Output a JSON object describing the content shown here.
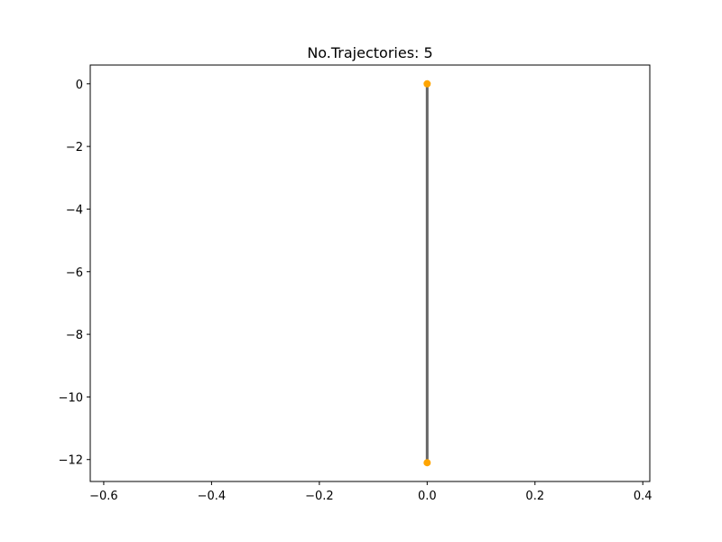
{
  "chart_data": {
    "type": "line",
    "title": "No.Trajectories: 5",
    "xlabel": "",
    "ylabel": "",
    "xlim": [
      -0.625,
      0.413
    ],
    "ylim": [
      -12.7,
      0.6
    ],
    "x_ticks": [
      -0.6,
      -0.4,
      -0.2,
      0.0,
      0.2,
      0.4
    ],
    "x_tick_labels": [
      "−0.6",
      "−0.4",
      "−0.2",
      "0.0",
      "0.2",
      "0.4"
    ],
    "y_ticks": [
      0,
      -2,
      -4,
      -6,
      -8,
      -10,
      -12
    ],
    "y_tick_labels": [
      "0",
      "−2",
      "−4",
      "−6",
      "−8",
      "−10",
      "−12"
    ],
    "grid": false,
    "series": [
      {
        "x": [
          0.0,
          0.0
        ],
        "y": [
          0.0,
          -12.1
        ],
        "line_color": "#666666",
        "marker_color": "#ffa500"
      }
    ]
  }
}
